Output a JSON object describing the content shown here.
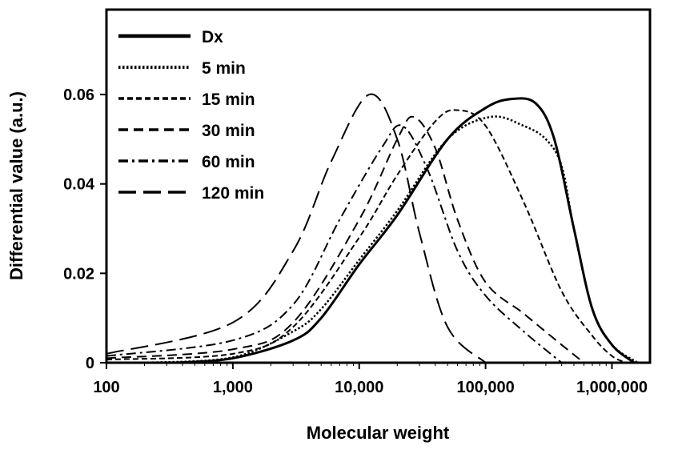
{
  "chart_data": {
    "type": "line",
    "title": "",
    "xlabel": "Molecular weight",
    "ylabel": "Differential value (a.u.)",
    "xscale": "log",
    "xlim": [
      100,
      2000000
    ],
    "ylim": [
      0,
      0.079
    ],
    "xticks": [
      100,
      1000,
      10000,
      100000,
      1000000
    ],
    "xtick_labels": [
      "100",
      "1,000",
      "10,000",
      "100,000",
      "1,000,000"
    ],
    "yticks": [
      0,
      0.02,
      0.04,
      0.06
    ],
    "ytick_labels": [
      "0",
      "0.02",
      "0.04",
      "0.06"
    ],
    "grid": false,
    "legend_position": "top-left",
    "series": [
      {
        "name": "Dx",
        "style": "solid",
        "x": [
          350,
          1000,
          3000,
          5000,
          10000,
          20000,
          50000,
          100000,
          160000,
          250000,
          350000,
          500000,
          700000,
          1000000,
          1500000
        ],
        "y": [
          0,
          0.001,
          0.005,
          0.01,
          0.022,
          0.033,
          0.05,
          0.057,
          0.059,
          0.058,
          0.05,
          0.03,
          0.012,
          0.004,
          0
        ]
      },
      {
        "name": "5 min",
        "style": "dotted",
        "x": [
          200,
          1000,
          3000,
          5000,
          10000,
          20000,
          50000,
          110000,
          200000,
          300000,
          400000,
          500000,
          700000,
          1000000,
          1600000
        ],
        "y": [
          0,
          0.0012,
          0.007,
          0.012,
          0.023,
          0.034,
          0.05,
          0.055,
          0.053,
          0.05,
          0.044,
          0.03,
          0.012,
          0.004,
          0
        ]
      },
      {
        "name": "15 min",
        "style": "short-dash",
        "x": [
          100,
          1000,
          3000,
          10000,
          20000,
          40000,
          60000,
          100000,
          200000,
          400000,
          700000,
          1000000,
          1300000
        ],
        "y": [
          0.0007,
          0.002,
          0.008,
          0.028,
          0.042,
          0.054,
          0.0565,
          0.053,
          0.036,
          0.016,
          0.006,
          0.0015,
          0
        ]
      },
      {
        "name": "30 min",
        "style": "dash",
        "x": [
          100,
          1000,
          3000,
          10000,
          20000,
          27000,
          40000,
          60000,
          100000,
          200000,
          400000,
          600000
        ],
        "y": [
          0.001,
          0.003,
          0.009,
          0.032,
          0.05,
          0.055,
          0.048,
          0.032,
          0.018,
          0.011,
          0.004,
          0
        ]
      },
      {
        "name": "60 min",
        "style": "dash-dot",
        "x": [
          100,
          1000,
          3000,
          7000,
          15000,
          22000,
          35000,
          60000,
          100000,
          200000,
          400000
        ],
        "y": [
          0.0015,
          0.005,
          0.013,
          0.032,
          0.048,
          0.053,
          0.043,
          0.025,
          0.015,
          0.007,
          0
        ]
      },
      {
        "name": "120 min",
        "style": "long-dash",
        "x": [
          100,
          1000,
          3000,
          6000,
          12000,
          20000,
          30000,
          50000,
          100000
        ],
        "y": [
          0.002,
          0.009,
          0.025,
          0.045,
          0.06,
          0.05,
          0.029,
          0.008,
          0
        ]
      }
    ]
  }
}
